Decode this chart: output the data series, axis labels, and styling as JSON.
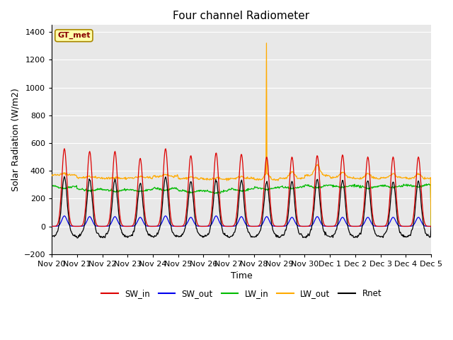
{
  "title": "Four channel Radiometer",
  "xlabel": "Time",
  "ylabel": "Solar Radiation (W/m2)",
  "ylim": [
    -200,
    1450
  ],
  "yticks": [
    -200,
    0,
    200,
    400,
    600,
    800,
    1000,
    1200,
    1400
  ],
  "plot_bg": "#e8e8e8",
  "fig_bg": "#ffffff",
  "annotation_text": "GT_met",
  "annotation_bg": "#ffffaa",
  "annotation_border": "#aa8800",
  "annotation_text_color": "#880000",
  "colors": {
    "SW_in": "#dd0000",
    "SW_out": "#0000ee",
    "LW_in": "#00bb00",
    "LW_out": "#ffaa00",
    "Rnet": "#000000"
  },
  "num_days": 15,
  "tick_labels": [
    "Nov 20",
    "Nov 21",
    "Nov 22",
    "Nov 23",
    "Nov 24",
    "Nov 25",
    "Nov 26",
    "Nov 27",
    "Nov 28",
    "Nov 29",
    "Nov 30",
    "Dec 1",
    "Dec 2",
    "Dec 3",
    "Dec 4",
    "Dec 5"
  ],
  "legend_labels": [
    "SW_in",
    "SW_out",
    "LW_in",
    "LW_out",
    "Rnet"
  ],
  "grid_color": "#ffffff",
  "lw": 0.9
}
